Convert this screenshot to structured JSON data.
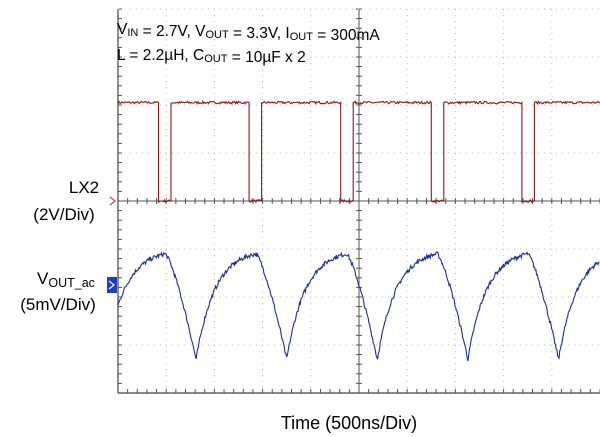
{
  "chart_data": {
    "type": "line",
    "x_unit": "div",
    "x_range": [
      0,
      10
    ],
    "divisions": {
      "x": 10,
      "y": 8
    },
    "xlabel": "Time  (500ns/Div)",
    "annotation": {
      "line1": [
        {
          "t": "V",
          "sub": false
        },
        {
          "t": "IN",
          "sub": true
        },
        {
          "t": " = 2.7V, V",
          "sub": false
        },
        {
          "t": "OUT",
          "sub": true
        },
        {
          "t": " = 3.3V, I",
          "sub": false
        },
        {
          "t": "OUT",
          "sub": true
        },
        {
          "t": " = 300mA",
          "sub": false
        }
      ],
      "line2": [
        {
          "t": "L = 2.2µH, C",
          "sub": false
        },
        {
          "t": "OUT",
          "sub": true
        },
        {
          "t": " = 10µF x 2",
          "sub": false
        }
      ]
    },
    "channels": [
      {
        "name": "LX2",
        "scale": "(2V/Div)",
        "color": "#8b1a1a",
        "marker_color": "#c0504d",
        "marker_style": "chevron",
        "ground_div": 4.0,
        "high_div": 6.05,
        "low_div": 4.0,
        "low_intervals_div": [
          [
            0.84,
            1.1
          ],
          [
            2.72,
            2.98
          ],
          [
            4.6,
            4.86
          ],
          [
            6.48,
            6.74
          ],
          [
            8.36,
            8.62
          ]
        ]
      },
      {
        "name_parts": [
          {
            "t": "V",
            "sub": false
          },
          {
            "t": "OUT_ac",
            "sub": true
          }
        ],
        "scale": "(5mV/Div)",
        "color": "#1f2f8c",
        "marker_color": "#1f3fbf",
        "marker_style": "filled",
        "ground_div": 2.25,
        "peak_div": 2.9,
        "trough_div": 0.7,
        "peak_time_div": [
          0.98,
          2.86,
          4.74,
          6.62,
          8.5
        ],
        "trough_time_div": [
          1.62,
          3.5,
          5.38,
          7.26,
          9.14
        ],
        "mid_lower_div": 1.6
      }
    ]
  }
}
